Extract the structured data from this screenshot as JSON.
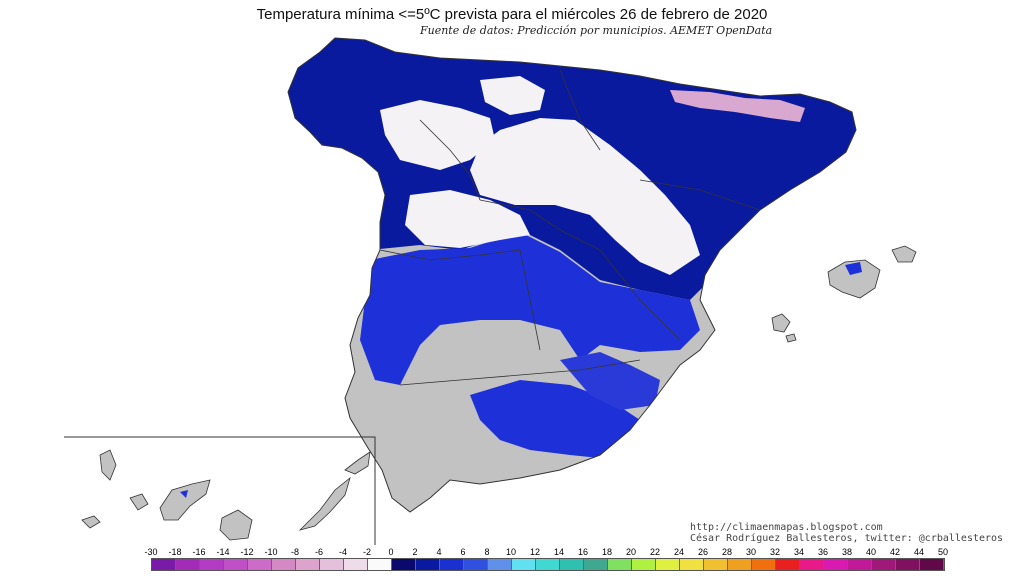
{
  "map": {
    "title": "Temperatura mínima <=5ºC prevista para el miércoles 26 de febrero de 2020",
    "source": "Fuente de datos: Predicción por municipios. AEMET OpenData",
    "credits": {
      "line1": "http://climaenmapas.blogspot.com",
      "line2": "César Rodríguez Ballesteros, twitter: @crballesteros"
    },
    "colors": {
      "no_data_gray": "#c2c2c2",
      "deep_blue": "#0a1a9e",
      "mid_blue": "#1e30d8",
      "white_frost": "#f4f2f4",
      "pink_cold": "#d8a8d0",
      "border": "#333333"
    },
    "legend": {
      "labels": [
        "-30",
        "-18",
        "-16",
        "-14",
        "-12",
        "-10",
        "-8",
        "-6",
        "-4",
        "-2",
        "0",
        "2",
        "4",
        "6",
        "8",
        "10",
        "12",
        "14",
        "16",
        "18",
        "20",
        "22",
        "24",
        "26",
        "28",
        "30",
        "32",
        "34",
        "36",
        "38",
        "40",
        "42",
        "44",
        "50"
      ],
      "colors": [
        "#7a1aa8",
        "#a22cb8",
        "#b23cc4",
        "#c050c8",
        "#cc6cc8",
        "#d488c4",
        "#dca4cc",
        "#e4c0dc",
        "#eedcea",
        "#fafafa",
        "#0a0a6e",
        "#0a1aa0",
        "#1a30d0",
        "#3050e0",
        "#6090ea",
        "#60e0f0",
        "#40d8d0",
        "#30c0b0",
        "#40a890",
        "#80e060",
        "#b0f040",
        "#e0f040",
        "#f0e040",
        "#f0c030",
        "#f0a020",
        "#f07010",
        "#e82020",
        "#e81a8a",
        "#d81ab0",
        "#c01a98",
        "#a01878",
        "#801060",
        "#600848"
      ]
    }
  }
}
